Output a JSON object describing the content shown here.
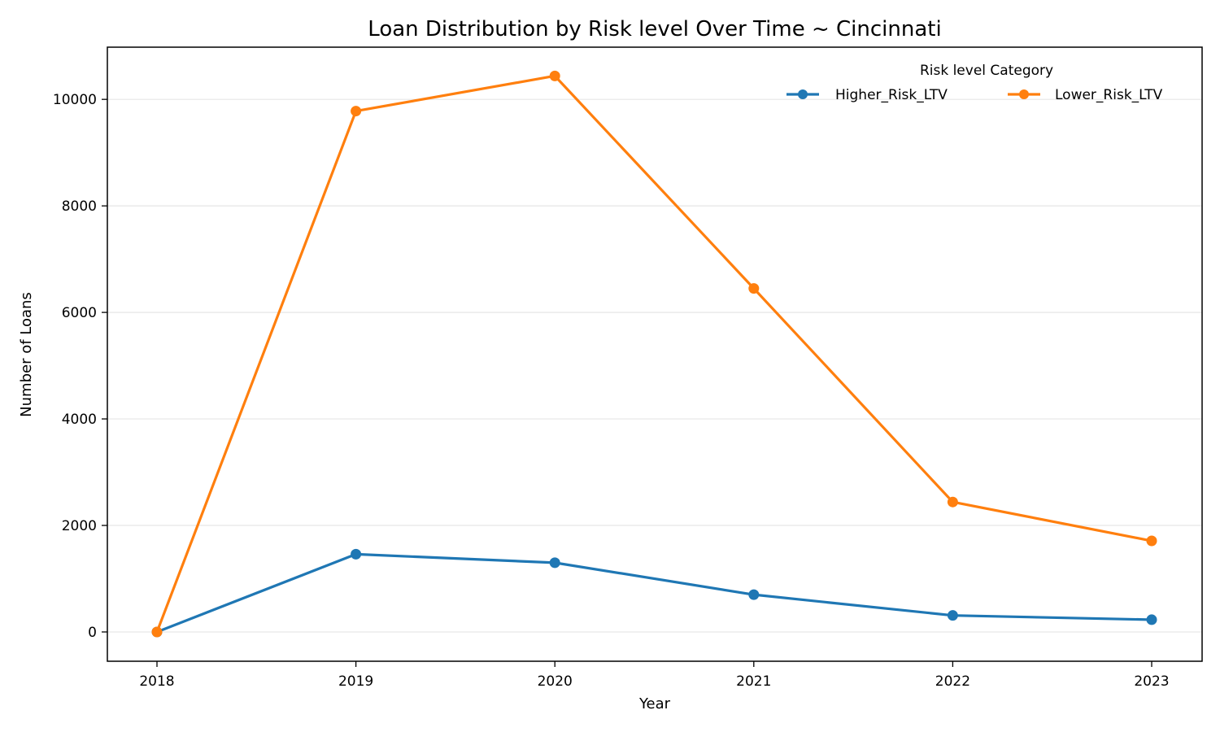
{
  "chart_data": {
    "type": "line",
    "title": "Loan Distribution by Risk level Over Time ~ Cincinnati",
    "xlabel": "Year",
    "ylabel": "Number of Loans",
    "x": [
      "2018",
      "2019",
      "2020",
      "2021",
      "2022",
      "2023"
    ],
    "ylim": [
      -550,
      10980
    ],
    "yticks": [
      0,
      2000,
      4000,
      6000,
      8000,
      10000
    ],
    "grid": "horizontal",
    "legend": {
      "title": "Risk level Category",
      "placement": "top-right"
    },
    "series": [
      {
        "name": "Higher_Risk_LTV",
        "color": "#1f77b4",
        "values": [
          0,
          1460,
          1300,
          700,
          310,
          230
        ]
      },
      {
        "name": "Lower_Risk_LTV",
        "color": "#ff7f0e",
        "values": [
          0,
          9780,
          10440,
          6450,
          2440,
          1710
        ]
      }
    ]
  }
}
